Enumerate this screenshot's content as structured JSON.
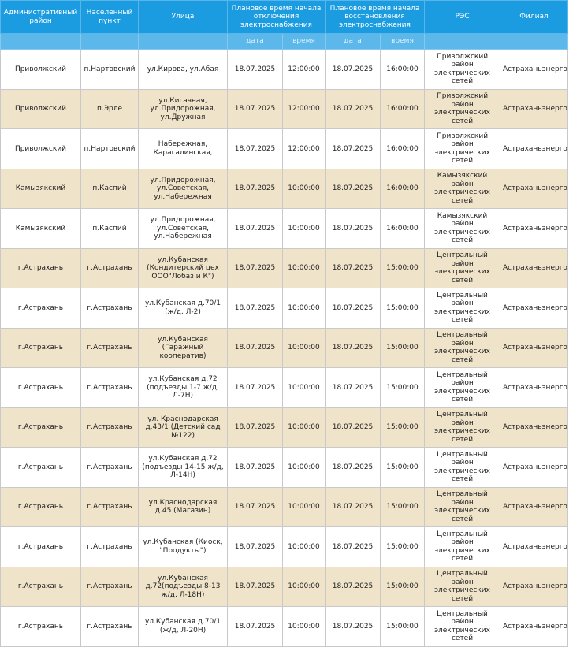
{
  "table": {
    "header": [
      "Административный район",
      "Населенный пункт",
      "Улица",
      "Плановое время начала отключения электроснабжения",
      "Плановое время начала восстановления электроснабжения",
      "РЭС",
      "Филиал"
    ],
    "subheader": [
      "дата",
      "время",
      "дата",
      "время"
    ],
    "rows": [
      [
        "Приволжский",
        "п.Нартовский",
        "ул.Кирова, ул.Абая",
        "18.07.2025",
        "12:00:00",
        "18.07.2025",
        "16:00:00",
        "Приволжский район электрических сетей",
        "Астраханьэнерго"
      ],
      [
        "Приволжский",
        "п.Эрле",
        "ул.Кигачная, ул.Придорожная, ул.Дружная",
        "18.07.2025",
        "12:00:00",
        "18.07.2025",
        "16:00:00",
        "Приволжский район электрических сетей",
        "Астраханьэнерго"
      ],
      [
        "Приволжский",
        "п.Нартовский",
        "Набережная, Карагалинская,",
        "18.07.2025",
        "12:00:00",
        "18.07.2025",
        "16:00:00",
        "Приволжский район электрических сетей",
        "Астраханьэнерго"
      ],
      [
        "Камызякский",
        "п.Каспий",
        "ул.Придорожная, ул.Советская, ул.Набережная",
        "18.07.2025",
        "10:00:00",
        "18.07.2025",
        "16:00:00",
        "Камызякский район электрических сетей",
        "Астраханьэнерго"
      ],
      [
        "Камызякский",
        "п.Каспий",
        "ул.Придорожная, ул.Советская, ул.Набережная",
        "18.07.2025",
        "10:00:00",
        "18.07.2025",
        "16:00:00",
        "Камызякский район электрических сетей",
        "Астраханьэнерго"
      ],
      [
        "г.Астрахань",
        "г.Астрахань",
        "ул.Кубанская (Кондитерский цех ООО\"Лобаз и К\")",
        "18.07.2025",
        "10:00:00",
        "18.07.2025",
        "15:00:00",
        "Центральный район электрических сетей",
        "Астраханьэнерго"
      ],
      [
        "г.Астрахань",
        "г.Астрахань",
        "ул.Кубанская д.70/1 (ж/д, Л-2)",
        "18.07.2025",
        "10:00:00",
        "18.07.2025",
        "15:00:00",
        "Центральный район электрических сетей",
        "Астраханьэнерго"
      ],
      [
        "г.Астрахань",
        "г.Астрахань",
        "ул.Кубанская (Гаражный кооператив)",
        "18.07.2025",
        "10:00:00",
        "18.07.2025",
        "15:00:00",
        "Центральный район электрических сетей",
        "Астраханьэнерго"
      ],
      [
        "г.Астрахань",
        "г.Астрахань",
        "ул.Кубанская д.72 (подъезды 1-7 ж/д, Л-7Н)",
        "18.07.2025",
        "10:00:00",
        "18.07.2025",
        "15:00:00",
        "Центральный район электрических сетей",
        "Астраханьэнерго"
      ],
      [
        "г.Астрахань",
        "г.Астрахань",
        "ул. Краснодарская д.43/1 (Детский сад №122)",
        "18.07.2025",
        "10:00:00",
        "18.07.2025",
        "15:00:00",
        "Центральный район электрических сетей",
        "Астраханьэнерго"
      ],
      [
        "г.Астрахань",
        "г.Астрахань",
        "ул.Кубанская д.72 (подъезды 14-15 ж/д, Л-14Н)",
        "18.07.2025",
        "10:00:00",
        "18.07.2025",
        "15:00:00",
        "Центральный район электрических сетей",
        "Астраханьэнерго"
      ],
      [
        "г.Астрахань",
        "г.Астрахань",
        "ул.Краснодарская д.45 (Магазин)",
        "18.07.2025",
        "10:00:00",
        "18.07.2025",
        "15:00:00",
        "Центральный район электрических сетей",
        "Астраханьэнерго"
      ],
      [
        "г.Астрахань",
        "г.Астрахань",
        "ул.Кубанская (Киоск, \"Продукты\")",
        "18.07.2025",
        "10:00:00",
        "18.07.2025",
        "15:00:00",
        "Центральный район электрических сетей",
        "Астраханьэнерго"
      ],
      [
        "г.Астрахань",
        "г.Астрахань",
        "ул.Кубанская д.72(подъезды 8-13 ж/д, Л-18Н)",
        "18.07.2025",
        "10:00:00",
        "18.07.2025",
        "15:00:00",
        "Центральный район электрических сетей",
        "Астраханьэнерго"
      ],
      [
        "г.Астрахань",
        "г.Астрахань",
        "ул.Кубанская д.70/1 (ж/д, Л-20Н)",
        "18.07.2025",
        "10:00:00",
        "18.07.2025",
        "15:00:00",
        "Центральный район электрических сетей",
        "Астраханьэнерго"
      ]
    ]
  }
}
